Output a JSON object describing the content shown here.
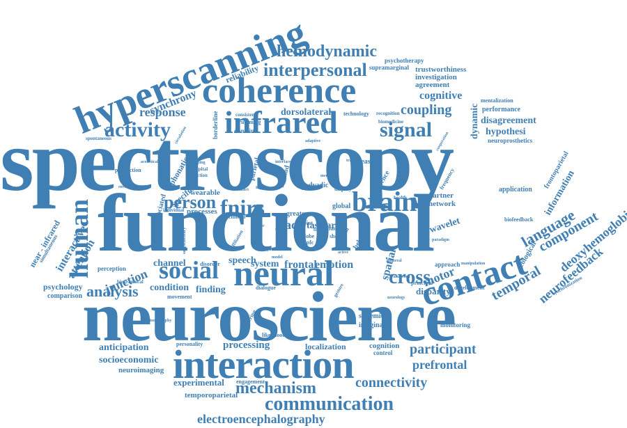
{
  "words": {
    "spectroscopy": "spectroscopy",
    "functional": "functional",
    "neuroscience": "neuroscience",
    "interaction": "interaction",
    "hyperscanning": "hyperscanning",
    "coherence": "coherence",
    "infrared": "infrared",
    "neural": "neural",
    "contact": "contact",
    "social": "social",
    "brain": "brain",
    "fnirs": "fnirs",
    "person": "person",
    "human": "human",
    "activity": "activity",
    "signal": "signal",
    "hemodynamic": "hemodynamic",
    "interpersonal": "interpersonal",
    "communication": "communication",
    "mechanism": "mechanism",
    "electroencephalography": "electroencephalography",
    "analysis": "analysis",
    "participant": "participant",
    "connectivity": "connectivity",
    "prefrontal": "prefrontal",
    "processing": "processing",
    "anticipation": "anticipation",
    "socioeconomic": "socioeconomic",
    "neuroimaging": "neuroimaging",
    "experimental": "experimental",
    "temporoparietal": "temporoparietal",
    "synchrony": "synchrony",
    "response": "response",
    "dorsolateral": "dorsolateral",
    "coupling": "coupling",
    "cognitive": "cognitive",
    "agreement": "agreement",
    "investigation": "investigation",
    "trustworthiness": "trustworthiness",
    "psychotherapy": "psychotherapy",
    "supramarginal": "supramarginal",
    "disagreement": "disagreement",
    "hypothesi": "hypothesi",
    "dynamic": "dynamic",
    "performance": "performance",
    "mentalization": "mentalization",
    "neuroprosthetics": "neuroprosthetics",
    "language": "language",
    "component": "component",
    "information": "information",
    "deoxyhemoglobin": "deoxyhemoglobin",
    "neurofeedback": "neurofeedback",
    "temporal": "temporal",
    "motor": "motor",
    "cross": "cross",
    "spatial": "spatial",
    "emotion": "emotion",
    "frontal": "frontal",
    "system": "system",
    "speech": "speech",
    "channel": "channel",
    "junction": "junction",
    "attention": "attention",
    "interactive": "interactive",
    "condition": "condition",
    "finding": "finding",
    "psychology": "psychology",
    "comparison": "comparison",
    "face": "face",
    "task_area": "task area",
    "wearable": "wearable",
    "processes": "processes",
    "specific": "specific",
    "phonation": "phonation",
    "reliability": "reliability",
    "borderline": "borderline",
    "technology": "technology",
    "recognition": "recognition",
    "biomedicine": "biomedicine",
    "application": "application",
    "frontoparietal": "frontoparietal",
    "ecological": "ecological",
    "biofeedback": "biofeedback",
    "network": "network",
    "partner": "partner",
    "wavelet": "wavelet",
    "approach": "approach",
    "disparity": "disparity",
    "principal": "principal",
    "development": "development",
    "localization": "localization",
    "cognition": "cognition",
    "control": "control",
    "monitoring": "monitoring",
    "imaginary": "imaginary",
    "systemic": "systemic",
    "near_infrared": "near - infrared",
    "simultaneous": "simultaneous",
    "spontaneous": "spontaneous",
    "production": "production",
    "environment": "environment",
    "associated": "associated",
    "perception": "perception",
    "biographical": "biographical",
    "individual": "individual",
    "movement": "movement",
    "disorder": "disorder",
    "clinical": "clinical",
    "personality": "personality",
    "tomography": "tomography",
    "engagement": "engagement",
    "likelihood": "likelihood",
    "stuttering": "stuttering",
    "dialogue": "dialogue",
    "global": "global",
    "greater": "greater",
    "dyadic": "dyadic",
    "behavior": "behavior",
    "science": "science",
    "measure": "measure",
    "parietal": "parietal",
    "method": "method",
    "domain": "domain",
    "drumming": "drumming",
    "consistent": "consistent",
    "frequency": "frequency",
    "health": "health",
    "synchronization": "synchronization",
    "joint": "joint",
    "dlpfc": "dlpfc",
    "lobe": "lobe",
    "short": "short",
    "display": "display",
    "band": "band",
    "occipital": "occipital",
    "function": "function",
    "stepping": "stepping",
    "acoustical": "acoustical",
    "circulation": "circulation",
    "supplementary": "supplementary",
    "temporoparietal_small": "temporoparietal",
    "adaptive": "adaptive",
    "neurology": "neurology",
    "framework": "framework",
    "bilateral": "bilateral",
    "gesture": "gesture",
    "model": "model",
    "active": "active",
    "tracking": "tracking",
    "paradigm": "paradigm",
    "manipulation": "manipulation",
    "interface": "interface",
    "cooperation": "cooperation",
    "removal": "removal",
    "affiliation": "affiliation",
    "facial": "facial",
    "region": "region",
    "conflict": "conflict",
    "dyad": "dyad",
    "filter": "filter",
    "data": "data",
    "five": "five",
    "mental": "mental"
  }
}
